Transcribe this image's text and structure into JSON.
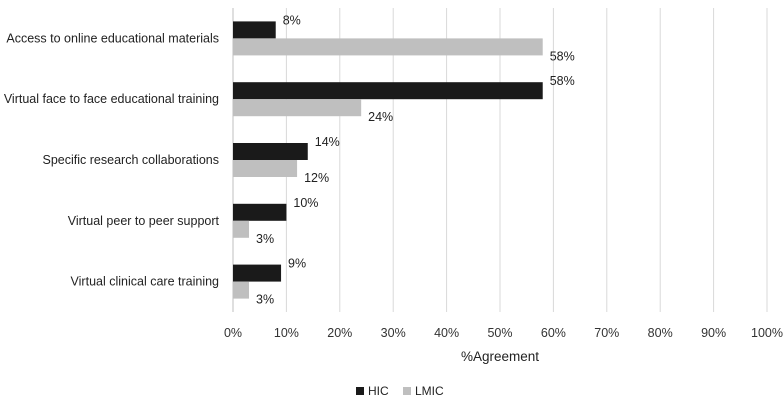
{
  "chart_data": {
    "type": "bar",
    "orientation": "horizontal",
    "categories": [
      "Access to online educational materials",
      "Virtual face to face educational training",
      "Specific research collaborations",
      "Virtual peer to peer support",
      "Virtual clinical care training"
    ],
    "series": [
      {
        "name": "HIC",
        "color": "#1a1a1a",
        "values": [
          8,
          58,
          14,
          10,
          9
        ]
      },
      {
        "name": "LMIC",
        "color": "#bfbfbf",
        "values": [
          58,
          24,
          12,
          3,
          3
        ]
      }
    ],
    "data_labels": {
      "HIC": [
        "8%",
        "58%",
        "14%",
        "10%",
        "9%"
      ],
      "LMIC": [
        "58%",
        "24%",
        "12%",
        "3%",
        "3%"
      ]
    },
    "xlabel": "%Agreement",
    "ylabel": "",
    "xlim": [
      0,
      100
    ],
    "xticks": [
      0,
      10,
      20,
      30,
      40,
      50,
      60,
      70,
      80,
      90,
      100
    ],
    "xtick_labels": [
      "0%",
      "10%",
      "20%",
      "30%",
      "40%",
      "50%",
      "60%",
      "70%",
      "80%",
      "90%",
      "100%"
    ],
    "grid": true,
    "grid_color": "#d9d9d9",
    "legend": {
      "position": "bottom",
      "entries": [
        "HIC",
        "LMIC"
      ]
    }
  }
}
